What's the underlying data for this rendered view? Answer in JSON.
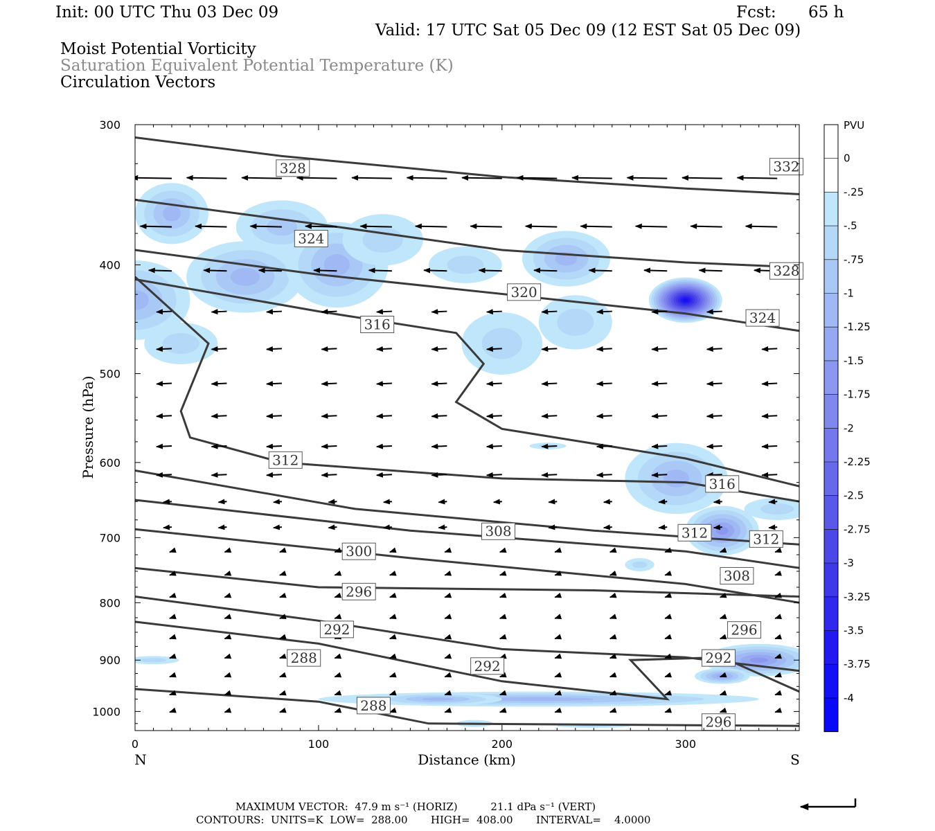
{
  "header": {
    "init": "Init: 00 UTC Thu 03 Dec 09",
    "fcst_label": "Fcst:",
    "fcst_value": "65 h",
    "valid": "Valid: 17 UTC Sat 05 Dec 09 (12 EST Sat 05 Dec 09)",
    "line1": "Moist Potential Vorticity",
    "line2": "Saturation Equivalent Potential Temperature (K)",
    "line3": "Circulation Vectors"
  },
  "chart_data": {
    "type": "cross-section",
    "xlabel": "Distance (km)",
    "ylabel": "Pressure (hPa)",
    "xlim": [
      0,
      362
    ],
    "ylim": [
      1040,
      300
    ],
    "y_scale": "log",
    "x_ticks": [
      0,
      100,
      200,
      300
    ],
    "y_ticks": [
      300,
      400,
      500,
      600,
      700,
      800,
      900,
      1000
    ],
    "x_end_labels": {
      "left": "N",
      "right": "S"
    },
    "colorbar": {
      "title": "PVU",
      "labels": [
        "0",
        "-.25",
        "-.5",
        "-.75",
        "-1",
        "-1.25",
        "-1.5",
        "-1.75",
        "-2",
        "-2.25",
        "-2.5",
        "-2.75",
        "-3",
        "-3.25",
        "-3.5",
        "-3.75",
        "-4"
      ],
      "colors": [
        "#ffffff",
        "#ffffff",
        "#bfe6fa",
        "#b4d8f8",
        "#aac8f6",
        "#a0b8f4",
        "#96a8f2",
        "#8c98f0",
        "#8088ee",
        "#7478ec",
        "#6868ea",
        "#5a58e8",
        "#4c48e8",
        "#3e38e8",
        "#3028ec",
        "#2218f0",
        "#1410f4",
        "#0a08f8"
      ]
    },
    "contour_labels": [
      {
        "value": "328",
        "x": 86,
        "p": 328
      },
      {
        "value": "324",
        "x": 96,
        "p": 379
      },
      {
        "value": "320",
        "x": 212,
        "p": 423
      },
      {
        "value": "316",
        "x": 132,
        "p": 452
      },
      {
        "value": "312",
        "x": 82,
        "p": 597
      },
      {
        "value": "308",
        "x": 198,
        "p": 691
      },
      {
        "value": "300",
        "x": 122,
        "p": 720
      },
      {
        "value": "296",
        "x": 122,
        "p": 782
      },
      {
        "value": "292",
        "x": 110,
        "p": 845
      },
      {
        "value": "288",
        "x": 92,
        "p": 896
      },
      {
        "value": "292",
        "x": 192,
        "p": 911
      },
      {
        "value": "288",
        "x": 130,
        "p": 988
      },
      {
        "value": "332",
        "x": 355,
        "p": 327
      },
      {
        "value": "328",
        "x": 355,
        "p": 405
      },
      {
        "value": "324",
        "x": 342,
        "p": 446
      },
      {
        "value": "316",
        "x": 320,
        "p": 627
      },
      {
        "value": "312",
        "x": 305,
        "p": 693
      },
      {
        "value": "312",
        "x": 344,
        "p": 702
      },
      {
        "value": "308",
        "x": 328,
        "p": 757
      },
      {
        "value": "296",
        "x": 332,
        "p": 846
      },
      {
        "value": "292",
        "x": 318,
        "p": 896
      },
      {
        "value": "296",
        "x": 318,
        "p": 1022
      }
    ]
  },
  "footer": {
    "max_vector": "MAXIMUM VECTOR:  47.9 m s⁻¹ (HORIZ)          21.1 dPa s⁻¹ (VERT)",
    "contours": "CONTOURS:  UNITS=K  LOW=  288.00       HIGH=  408.00       INTERVAL=    4.0000"
  }
}
